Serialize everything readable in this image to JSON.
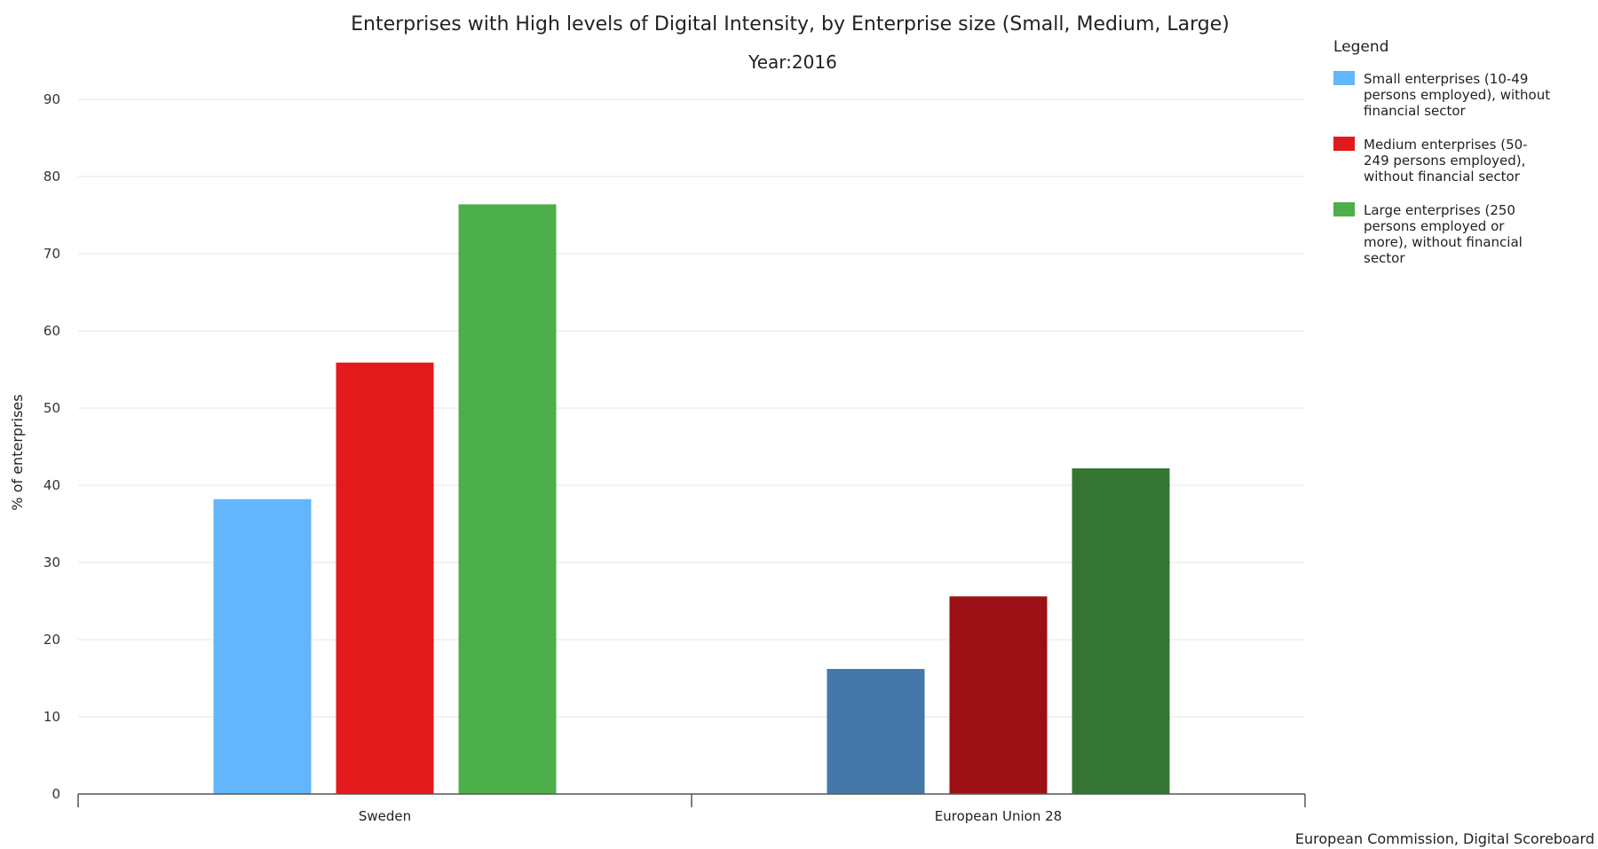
{
  "chart_data": {
    "type": "bar",
    "title": "Enterprises with High levels of Digital Intensity, by Enterprise size (Small, Medium, Large)",
    "subtitle": "Year:2016",
    "xlabel": "",
    "ylabel": "% of enterprises",
    "ylim": [
      0,
      90
    ],
    "yticks": [
      0,
      10,
      20,
      30,
      40,
      50,
      60,
      70,
      80,
      90
    ],
    "grid": true,
    "legend_title": "Legend",
    "legend_position": "right",
    "categories": [
      "Sweden",
      "European Union 28"
    ],
    "series": [
      {
        "name": "Small enterprises (10-49 persons employed), without financial sector",
        "legend_lines": [
          "Small enterprises (10-49",
          "persons employed), without",
          "financial sector"
        ],
        "values": [
          38.2,
          16.2
        ],
        "colors": [
          "#63b5fc",
          "#4478a8"
        ]
      },
      {
        "name": "Medium enterprises (50-249 persons employed), without financial sector",
        "legend_lines": [
          "Medium enterprises (50-",
          "249 persons employed),",
          "without financial sector"
        ],
        "values": [
          55.9,
          25.6
        ],
        "colors": [
          "#e31a1c",
          "#9b1014"
        ]
      },
      {
        "name": "Large enterprises (250 persons employed or more), without financial sector",
        "legend_lines": [
          "Large enterprises (250",
          "persons employed or",
          "more), without financial",
          "sector"
        ],
        "values": [
          76.4,
          42.2
        ],
        "colors": [
          "#4daf4a",
          "#347533"
        ]
      }
    ],
    "credit": "European Commission, Digital Scoreboard"
  }
}
